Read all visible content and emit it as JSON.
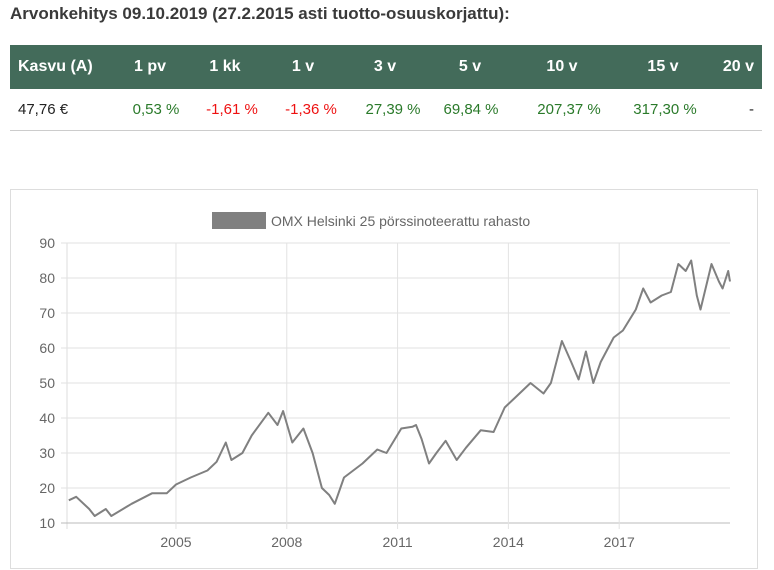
{
  "heading": "Arvonkehitys 09.10.2019 (27.2.2015 asti tuotto-osuuskorjattu):",
  "table": {
    "headers": [
      "Kasvu (A)",
      "1 pv",
      "1 kk",
      "1 v",
      "3 v",
      "5 v",
      "10 v",
      "15 v",
      "20 v"
    ],
    "values": [
      "47,76 €",
      "0,53 %",
      "-1,61 %",
      "-1,36 %",
      "27,39 %",
      "69,84 %",
      "207,37 %",
      "317,30 %",
      "-"
    ],
    "header_bg": "#436b5a",
    "positive_color": "#2a7a2a",
    "negative_color": "#ee1111"
  },
  "chart_data": {
    "type": "line",
    "title": "",
    "legend": {
      "position": "top",
      "entries": [
        "OMX Helsinki 25 pörssinoteerattu rahasto"
      ]
    },
    "series": [
      {
        "name": "OMX Helsinki 25 pörssinoteerattu rahasto",
        "color": "#808080",
        "x": [
          2002.1,
          2002.3,
          2002.65,
          2002.8,
          2003.1,
          2003.25,
          2003.8,
          2004.35,
          2004.75,
          2005.0,
          2005.4,
          2005.85,
          2006.1,
          2006.35,
          2006.5,
          2006.8,
          2007.05,
          2007.5,
          2007.75,
          2007.9,
          2008.15,
          2008.45,
          2008.7,
          2008.95,
          2009.15,
          2009.3,
          2009.55,
          2010.05,
          2010.45,
          2010.7,
          2011.1,
          2011.4,
          2011.5,
          2011.65,
          2011.85,
          2012.05,
          2012.3,
          2012.6,
          2012.85,
          2013.25,
          2013.6,
          2013.9,
          2014.2,
          2014.6,
          2014.95,
          2015.15,
          2015.45,
          2015.7,
          2015.9,
          2016.1,
          2016.3,
          2016.5,
          2016.85,
          2017.1,
          2017.45,
          2017.65,
          2017.85,
          2018.15,
          2018.4,
          2018.6,
          2018.8,
          2018.95,
          2019.1,
          2019.2,
          2019.5,
          2019.7,
          2019.8,
          2019.95,
          2020.0
        ],
        "y": [
          16.5,
          17.5,
          14,
          12,
          14,
          12,
          15.5,
          18.5,
          18.5,
          21,
          23,
          25,
          27.5,
          33,
          28,
          30,
          35,
          41.5,
          38,
          42,
          33,
          37,
          30,
          20,
          18,
          15.5,
          23,
          27,
          31,
          30,
          37,
          37.5,
          38,
          34,
          27,
          30,
          33.5,
          28,
          31.5,
          36.5,
          36,
          43,
          46,
          50,
          47,
          50,
          62,
          56,
          51,
          59,
          50,
          56,
          63,
          65,
          71,
          77,
          73,
          75,
          76,
          84,
          82,
          85,
          75,
          71,
          84,
          79,
          77,
          82,
          79
        ]
      }
    ],
    "xticks": [
      "2005",
      "2008",
      "2011",
      "2014",
      "2017"
    ],
    "xtick_values": [
      2005,
      2008,
      2011,
      2014,
      2017
    ],
    "yticks": [
      10,
      20,
      30,
      40,
      50,
      60,
      70,
      80,
      90
    ],
    "xlim": [
      2002.05,
      2020.0
    ],
    "ylim": [
      10,
      90
    ],
    "grid": true
  }
}
